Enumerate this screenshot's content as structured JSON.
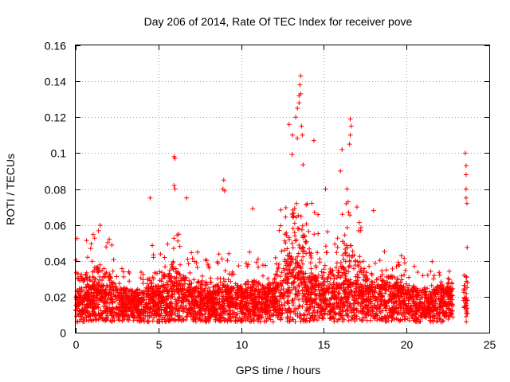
{
  "chart_data": {
    "type": "scatter",
    "title": "Day 206 of 2014, Rate Of TEC Index for receiver pove",
    "xlabel": "GPS time / hours",
    "ylabel": "ROTI / TECUs",
    "xlim": [
      0,
      25
    ],
    "ylim": [
      0,
      0.16
    ],
    "xticks": [
      0,
      5,
      10,
      15,
      20,
      25
    ],
    "xtick_labels": [
      "0",
      "5",
      "10",
      "15",
      "20",
      "25"
    ],
    "yticks": [
      0,
      0.02,
      0.04,
      0.06,
      0.08,
      0.1,
      0.12,
      0.14,
      0.16
    ],
    "ytick_labels": [
      "0",
      "0.02",
      "0.04",
      "0.06",
      "0.08",
      "0.1",
      "0.12",
      "0.14",
      "0.16"
    ],
    "grid": true,
    "marker": "+",
    "color": "#ff0000",
    "series": [
      {
        "name": "ROTI",
        "envelope": {
          "x": [
            0,
            0.5,
            1,
            1.5,
            2,
            2.5,
            3,
            3.5,
            4,
            4.5,
            5,
            5.5,
            6,
            6.5,
            7,
            7.5,
            8,
            8.2,
            8.5,
            9,
            9.5,
            10,
            10.5,
            11,
            11.5,
            12,
            12.5,
            12.8,
            13,
            13.3,
            13.5,
            13.8,
            14,
            14.5,
            15,
            15.5,
            16,
            16.5,
            17,
            17.5,
            18,
            18.5,
            19,
            19.5,
            20,
            20.5,
            21,
            21.5,
            22,
            22.5,
            22.7,
            23.5,
            23.7
          ],
          "peak": [
            0.055,
            0.05,
            0.055,
            0.06,
            0.055,
            0.045,
            0.035,
            0.035,
            0.035,
            0.045,
            0.06,
            0.05,
            0.065,
            0.05,
            0.045,
            0.045,
            0.045,
            0.03,
            0.048,
            0.05,
            0.04,
            0.04,
            0.045,
            0.045,
            0.04,
            0.05,
            0.075,
            0.1,
            0.105,
            0.11,
            0.115,
            0.095,
            0.08,
            0.07,
            0.06,
            0.055,
            0.065,
            0.08,
            0.065,
            0.055,
            0.05,
            0.05,
            0.05,
            0.045,
            0.04,
            0.04,
            0.035,
            0.04,
            0.04,
            0.05,
            0.045,
            0.05,
            0.05
          ],
          "base": [
            0.012,
            0.012,
            0.013,
            0.013,
            0.013,
            0.012,
            0.012,
            0.011,
            0.011,
            0.012,
            0.013,
            0.013,
            0.014,
            0.013,
            0.012,
            0.012,
            0.012,
            0.01,
            0.012,
            0.012,
            0.012,
            0.012,
            0.012,
            0.012,
            0.012,
            0.012,
            0.015,
            0.02,
            0.022,
            0.022,
            0.02,
            0.018,
            0.016,
            0.015,
            0.014,
            0.014,
            0.014,
            0.015,
            0.014,
            0.013,
            0.013,
            0.013,
            0.013,
            0.013,
            0.012,
            0.012,
            0.012,
            0.012,
            0.012,
            0.012,
            0.012,
            0.012,
            0.012
          ]
        },
        "gaps": [
          [
            22.8,
            23.45
          ]
        ],
        "density_per_hour": 180,
        "outliers": [
          {
            "x": 4.5,
            "y": 0.075
          },
          {
            "x": 5.95,
            "y": 0.098
          },
          {
            "x": 6.0,
            "y": 0.097
          },
          {
            "x": 5.95,
            "y": 0.082
          },
          {
            "x": 6.0,
            "y": 0.08
          },
          {
            "x": 6.7,
            "y": 0.075
          },
          {
            "x": 8.95,
            "y": 0.085
          },
          {
            "x": 8.9,
            "y": 0.08
          },
          {
            "x": 9.0,
            "y": 0.079
          },
          {
            "x": 10.7,
            "y": 0.069
          },
          {
            "x": 12.9,
            "y": 0.116
          },
          {
            "x": 13.1,
            "y": 0.11
          },
          {
            "x": 13.3,
            "y": 0.12
          },
          {
            "x": 13.4,
            "y": 0.125
          },
          {
            "x": 13.5,
            "y": 0.132
          },
          {
            "x": 13.55,
            "y": 0.138
          },
          {
            "x": 13.6,
            "y": 0.143
          },
          {
            "x": 13.6,
            "y": 0.133
          },
          {
            "x": 13.5,
            "y": 0.128
          },
          {
            "x": 13.65,
            "y": 0.115
          },
          {
            "x": 13.7,
            "y": 0.11
          },
          {
            "x": 14.4,
            "y": 0.107
          },
          {
            "x": 15.1,
            "y": 0.08
          },
          {
            "x": 16.1,
            "y": 0.102
          },
          {
            "x": 16.0,
            "y": 0.09
          },
          {
            "x": 16.6,
            "y": 0.119
          },
          {
            "x": 16.65,
            "y": 0.115
          },
          {
            "x": 16.6,
            "y": 0.11
          },
          {
            "x": 16.55,
            "y": 0.105
          },
          {
            "x": 16.4,
            "y": 0.08
          },
          {
            "x": 17.0,
            "y": 0.07
          },
          {
            "x": 18.0,
            "y": 0.068
          },
          {
            "x": 23.55,
            "y": 0.1
          },
          {
            "x": 23.6,
            "y": 0.093
          },
          {
            "x": 23.6,
            "y": 0.088
          },
          {
            "x": 23.6,
            "y": 0.08
          },
          {
            "x": 23.6,
            "y": 0.075
          },
          {
            "x": 23.65,
            "y": 0.072
          }
        ]
      }
    ]
  }
}
